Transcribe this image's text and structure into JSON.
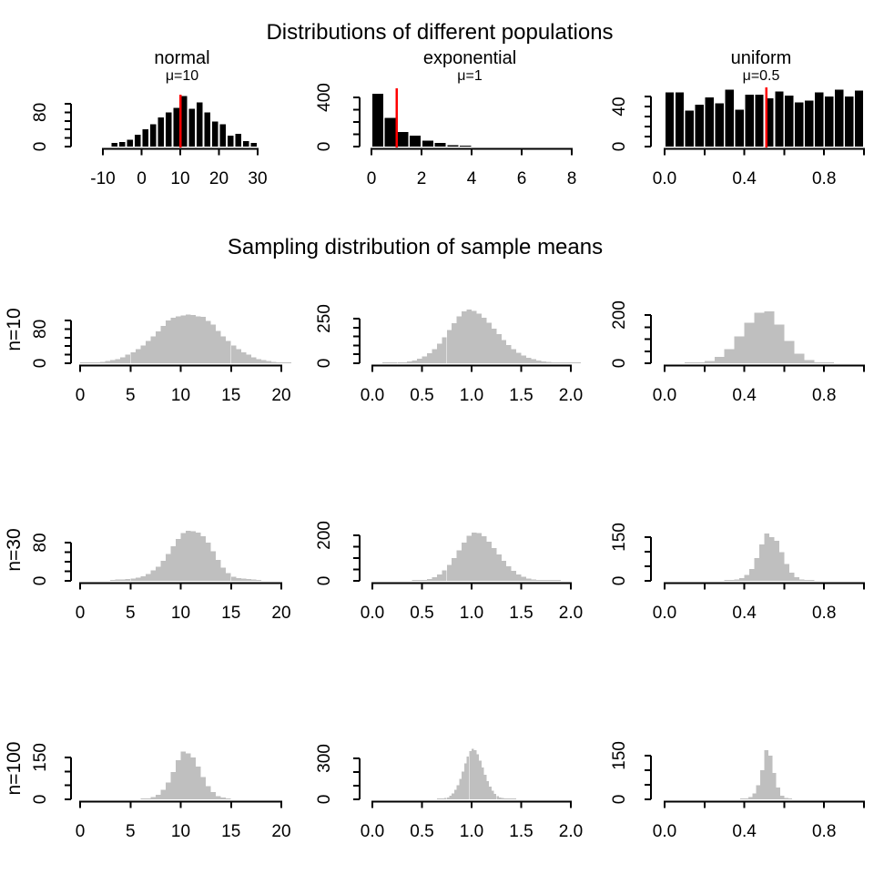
{
  "titles": {
    "populations": "Distributions of different populations",
    "sampling": "Sampling distribution of sample means"
  },
  "rows": [
    {
      "label": "n=10"
    },
    {
      "label": "n=30"
    },
    {
      "label": "n=100"
    }
  ],
  "colors": {
    "population_bar": "#000000",
    "sampling_bar": "#bfbfbf",
    "mean_line": "#ff0000"
  },
  "chart_data": [
    {
      "id": "pop_normal",
      "type": "bar",
      "title": "normal",
      "subtitle": "μ=10",
      "bar_color": "#000000",
      "mean_line_x": 10,
      "mean_line_color": "#ff0000",
      "bins": {
        "start": -8,
        "width": 2,
        "values": [
          9,
          11,
          16,
          28,
          40,
          52,
          68,
          80,
          90,
          118,
          88,
          103,
          80,
          58,
          52,
          26,
          30,
          13,
          9
        ]
      },
      "xticks": {
        "values": [
          -10,
          0,
          10,
          20,
          30
        ],
        "labels": [
          "-10",
          "0",
          "10",
          "20",
          "30"
        ]
      },
      "yticks": {
        "values": [
          0,
          20,
          40,
          60,
          80,
          100
        ],
        "labels": [
          "0",
          "",
          "",
          "",
          "80",
          ""
        ]
      }
    },
    {
      "id": "pop_expo",
      "type": "bar",
      "title": "exponential",
      "subtitle": "μ=1",
      "bar_color": "#000000",
      "mean_line_x": 1,
      "mean_line_color": "#ff0000",
      "bins": {
        "start": 0,
        "width": 0.5,
        "values": [
          430,
          235,
          120,
          90,
          50,
          28,
          12,
          4
        ]
      },
      "xticks": {
        "values": [
          0,
          2,
          4,
          6,
          8
        ],
        "labels": [
          "0",
          "2",
          "4",
          "6",
          "8"
        ]
      },
      "yticks": {
        "values": [
          0,
          100,
          200,
          300,
          400
        ],
        "labels": [
          "0",
          "",
          "",
          "",
          "400"
        ]
      }
    },
    {
      "id": "pop_unif",
      "type": "bar",
      "title": "uniform",
      "subtitle": "μ=0.5",
      "bar_color": "#000000",
      "mean_line_x": 0.51,
      "mean_line_color": "#ff0000",
      "bins": {
        "start": 0,
        "width": 0.05,
        "values": [
          54,
          54,
          36,
          42,
          49,
          43,
          57,
          37,
          52,
          52,
          48,
          55,
          51,
          44,
          46,
          54,
          50,
          57,
          50,
          56
        ]
      },
      "xticks": {
        "values": [
          0,
          0.2,
          0.4,
          0.6,
          0.8,
          1.0
        ],
        "labels": [
          "0.0",
          "",
          "0.4",
          "",
          "0.8",
          ""
        ]
      },
      "yticks": {
        "values": [
          0,
          10,
          20,
          30,
          40,
          50
        ],
        "labels": [
          "0",
          "",
          "",
          "",
          "40",
          ""
        ]
      }
    },
    {
      "id": "n10_normal",
      "type": "bar",
      "row": "n=10",
      "bar_color": "#bfbfbf",
      "bins": {
        "start": 0,
        "width": 0.5,
        "values": [
          1,
          1,
          2,
          2,
          3,
          5,
          7,
          10,
          14,
          20,
          26,
          33,
          42,
          52,
          63,
          74,
          87,
          100,
          106,
          110,
          112,
          114,
          113,
          110,
          108,
          99,
          90,
          76,
          63,
          52,
          42,
          33,
          26,
          20,
          14,
          10,
          7,
          5,
          3,
          2,
          2,
          1
        ]
      },
      "xticks": {
        "values": [
          0,
          5,
          10,
          15,
          20
        ],
        "labels": [
          "0",
          "5",
          "10",
          "15",
          "20"
        ]
      },
      "yticks": {
        "values": [
          0,
          20,
          40,
          60,
          80,
          100
        ],
        "labels": [
          "0",
          "",
          "",
          "",
          "80",
          ""
        ]
      }
    },
    {
      "id": "n10_expo",
      "type": "bar",
      "row": "n=10",
      "bar_color": "#bfbfbf",
      "bins": {
        "start": 0.1,
        "width": 0.05,
        "values": [
          2,
          2,
          3,
          4,
          6,
          10,
          16,
          25,
          38,
          56,
          80,
          110,
          145,
          185,
          225,
          262,
          290,
          300,
          294,
          278,
          255,
          226,
          194,
          162,
          131,
          103,
          79,
          59,
          43,
          31,
          22,
          15,
          10,
          7,
          5,
          3,
          2,
          2,
          1,
          1
        ]
      },
      "xticks": {
        "values": [
          0,
          0.5,
          1.0,
          1.5,
          2.0
        ],
        "labels": [
          "0.0",
          "0.5",
          "1.0",
          "1.5",
          "2.0"
        ]
      },
      "yticks": {
        "values": [
          0,
          50,
          100,
          150,
          200,
          250
        ],
        "labels": [
          "0",
          "",
          "",
          "",
          "",
          "250"
        ]
      }
    },
    {
      "id": "n10_unif",
      "type": "bar",
      "row": "n=10",
      "bar_color": "#bfbfbf",
      "bins": {
        "start": 0.1,
        "width": 0.05,
        "values": [
          2,
          4,
          10,
          26,
          58,
          112,
          168,
          210,
          215,
          160,
          92,
          40,
          14,
          4,
          2
        ]
      },
      "xticks": {
        "values": [
          0,
          0.2,
          0.4,
          0.6,
          0.8,
          1.0
        ],
        "labels": [
          "0.0",
          "",
          "0.4",
          "",
          "0.8",
          ""
        ]
      },
      "yticks": {
        "values": [
          0,
          50,
          100,
          150,
          200
        ],
        "labels": [
          "0",
          "",
          "",
          "",
          "200"
        ]
      }
    },
    {
      "id": "n30_normal",
      "type": "bar",
      "row": "n=30",
      "bar_color": "#bfbfbf",
      "bins": {
        "start": 3,
        "width": 0.5,
        "values": [
          2,
          3,
          3,
          4,
          5,
          7,
          10,
          14,
          22,
          30,
          42,
          56,
          72,
          88,
          100,
          105,
          104,
          101,
          93,
          80,
          62,
          44,
          28,
          16,
          9,
          6,
          5,
          4,
          3,
          2
        ]
      },
      "xticks": {
        "values": [
          0,
          5,
          10,
          15,
          20
        ],
        "labels": [
          "0",
          "5",
          "10",
          "15",
          "20"
        ]
      },
      "yticks": {
        "values": [
          0,
          20,
          40,
          60,
          80
        ],
        "labels": [
          "0",
          "",
          "",
          "",
          "80"
        ]
      }
    },
    {
      "id": "n30_expo",
      "type": "bar",
      "row": "n=30",
      "bar_color": "#bfbfbf",
      "bins": {
        "start": 0.4,
        "width": 0.05,
        "values": [
          2,
          3,
          5,
          9,
          16,
          28,
          46,
          70,
          100,
          135,
          168,
          198,
          213,
          210,
          196,
          172,
          145,
          116,
          88,
          64,
          44,
          29,
          18,
          11,
          7,
          4,
          3,
          2,
          1,
          1
        ]
      },
      "xticks": {
        "values": [
          0,
          0.5,
          1.0,
          1.5,
          2.0
        ],
        "labels": [
          "0.0",
          "0.5",
          "1.0",
          "1.5",
          "2.0"
        ]
      },
      "yticks": {
        "values": [
          0,
          50,
          100,
          150,
          200
        ],
        "labels": [
          "0",
          "",
          "",
          "",
          "200"
        ]
      }
    },
    {
      "id": "n30_unif",
      "type": "bar",
      "row": "n=30",
      "bar_color": "#bfbfbf",
      "bins": {
        "start": 0.3,
        "width": 0.025,
        "values": [
          1,
          2,
          4,
          9,
          20,
          40,
          78,
          125,
          162,
          150,
          138,
          98,
          58,
          28,
          12,
          5,
          2,
          1
        ]
      },
      "xticks": {
        "values": [
          0,
          0.2,
          0.4,
          0.6,
          0.8,
          1.0
        ],
        "labels": [
          "0.0",
          "",
          "0.4",
          "",
          "0.8",
          ""
        ]
      },
      "yticks": {
        "values": [
          0,
          50,
          100,
          150
        ],
        "labels": [
          "0",
          "",
          "",
          "150"
        ]
      }
    },
    {
      "id": "n100_normal",
      "type": "bar",
      "row": "n=100",
      "bar_color": "#bfbfbf",
      "bins": {
        "start": 6,
        "width": 0.5,
        "values": [
          2,
          4,
          8,
          17,
          34,
          60,
          98,
          140,
          172,
          164,
          150,
          118,
          80,
          48,
          26,
          12,
          6,
          3
        ]
      },
      "xticks": {
        "values": [
          0,
          5,
          10,
          15,
          20
        ],
        "labels": [
          "0",
          "5",
          "10",
          "15",
          "20"
        ]
      },
      "yticks": {
        "values": [
          0,
          50,
          100,
          150
        ],
        "labels": [
          "0",
          "",
          "",
          "150"
        ]
      }
    },
    {
      "id": "n100_expo",
      "type": "bar",
      "row": "n=100",
      "bar_color": "#bfbfbf",
      "bins": {
        "start": 0.65,
        "width": 0.025,
        "values": [
          2,
          3,
          5,
          9,
          15,
          26,
          44,
          70,
          105,
          150,
          205,
          262,
          315,
          355,
          370,
          360,
          330,
          285,
          232,
          180,
          132,
          93,
          62,
          40,
          25,
          15,
          9,
          6,
          4,
          2,
          2,
          1
        ]
      },
      "xticks": {
        "values": [
          0,
          0.5,
          1.0,
          1.5,
          2.0
        ],
        "labels": [
          "0.0",
          "0.5",
          "1.0",
          "1.5",
          "2.0"
        ]
      },
      "yticks": {
        "values": [
          0,
          100,
          200,
          300
        ],
        "labels": [
          "0",
          "",
          "",
          "300"
        ]
      }
    },
    {
      "id": "n100_unif",
      "type": "bar",
      "row": "n=100",
      "bar_color": "#bfbfbf",
      "bins": {
        "start": 0.38,
        "width": 0.02,
        "values": [
          1,
          3,
          8,
          20,
          48,
          100,
          168,
          150,
          90,
          40,
          12,
          4,
          1
        ]
      },
      "xticks": {
        "values": [
          0,
          0.2,
          0.4,
          0.6,
          0.8,
          1.0
        ],
        "labels": [
          "0.0",
          "",
          "0.4",
          "",
          "0.8",
          ""
        ]
      },
      "yticks": {
        "values": [
          0,
          50,
          100,
          150
        ],
        "labels": [
          "0",
          "",
          "",
          "150"
        ]
      }
    }
  ]
}
